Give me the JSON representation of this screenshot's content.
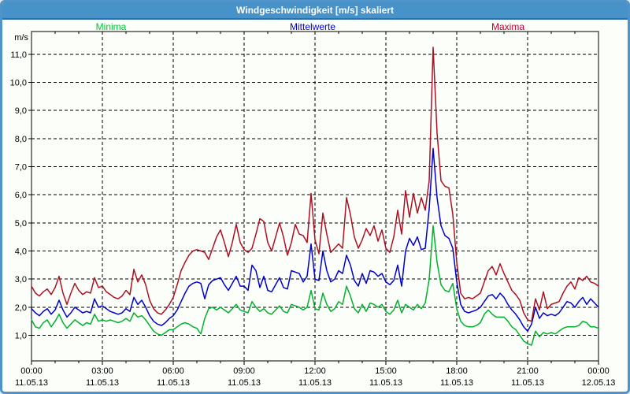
{
  "window": {
    "title": "Windgeschwindigkeit [m/s] skaliert"
  },
  "legend": {
    "items": [
      {
        "label": "Minima",
        "color": "#00c433"
      },
      {
        "label": "Mittelwerte",
        "color": "#0000cc"
      },
      {
        "label": "Maxima",
        "color": "#c3002f"
      }
    ]
  },
  "chart_data": {
    "type": "line",
    "title": "Windgeschwindigkeit [m/s] skaliert",
    "ylabel": "m/s",
    "xlabel": "",
    "grid": "dashed",
    "legend_position": "top",
    "sample_interval_minutes": 10,
    "x_range_hours": [
      0,
      24
    ],
    "ylim": [
      0.09,
      11.81
    ],
    "y_ticks": [
      {
        "value": 1,
        "label": "1,0"
      },
      {
        "value": 2,
        "label": "2,0"
      },
      {
        "value": 3,
        "label": "3,0"
      },
      {
        "value": 4,
        "label": "4,0"
      },
      {
        "value": 5,
        "label": "5,0"
      },
      {
        "value": 6,
        "label": "6,0"
      },
      {
        "value": 7,
        "label": "7,0"
      },
      {
        "value": 8,
        "label": "8,0"
      },
      {
        "value": 9,
        "label": "9,0"
      },
      {
        "value": 10,
        "label": "10,0"
      },
      {
        "value": 11,
        "label": "11,0"
      }
    ],
    "x_ticks": [
      {
        "hour": 0,
        "time": "00:00",
        "date": "11.05.13"
      },
      {
        "hour": 3,
        "time": "03:00",
        "date": "11.05.13"
      },
      {
        "hour": 6,
        "time": "06:00",
        "date": "11.05.13"
      },
      {
        "hour": 9,
        "time": "09:00",
        "date": "11.05.13"
      },
      {
        "hour": 12,
        "time": "12:00",
        "date": "11.05.13"
      },
      {
        "hour": 15,
        "time": "15:00",
        "date": "11.05.13"
      },
      {
        "hour": 18,
        "time": "18:00",
        "date": "11.05.13"
      },
      {
        "hour": 21,
        "time": "21:00",
        "date": "11.05.13"
      },
      {
        "hour": 24,
        "time": "00:00",
        "date": "12.05.13"
      }
    ],
    "series": [
      {
        "name": "Minima",
        "color": "#00b22c",
        "values": [
          1.55,
          1.3,
          1.25,
          1.45,
          1.55,
          1.3,
          1.5,
          1.75,
          1.45,
          1.25,
          1.4,
          1.55,
          1.45,
          1.35,
          1.45,
          1.4,
          1.75,
          1.5,
          1.55,
          1.5,
          1.55,
          1.5,
          1.45,
          1.5,
          1.6,
          1.5,
          1.8,
          1.65,
          1.7,
          1.55,
          1.35,
          1.15,
          1.05,
          1.0,
          1.1,
          1.2,
          1.2,
          1.3,
          1.4,
          1.45,
          1.4,
          1.3,
          1.25,
          1.05,
          1.6,
          1.95,
          2.0,
          1.9,
          2.0,
          1.9,
          1.8,
          1.95,
          2.1,
          1.9,
          1.85,
          1.8,
          2.2,
          2.0,
          1.85,
          1.95,
          1.8,
          1.75,
          1.9,
          2.05,
          1.85,
          1.8,
          2.1,
          2.05,
          2.0,
          1.9,
          2.0,
          2.6,
          1.95,
          1.9,
          2.5,
          2.1,
          1.85,
          1.95,
          2.2,
          2.1,
          2.75,
          2.4,
          1.95,
          1.8,
          2.1,
          1.85,
          2.15,
          2.1,
          2.0,
          2.1,
          1.85,
          1.75,
          1.9,
          2.25,
          1.8,
          2.1,
          2.0,
          1.9,
          2.1,
          1.95,
          2.15,
          3.0,
          4.9,
          3.6,
          2.8,
          2.6,
          2.55,
          2.85,
          1.95,
          1.5,
          1.35,
          1.3,
          1.3,
          1.35,
          1.45,
          1.75,
          1.9,
          1.75,
          1.65,
          1.65,
          1.65,
          1.5,
          1.3,
          1.2,
          1.0,
          0.8,
          0.7,
          0.65,
          1.15,
          0.95,
          1.1,
          1.05,
          1.1,
          1.05,
          1.15,
          1.25,
          1.3,
          1.3,
          1.3,
          1.35,
          1.5,
          1.45,
          1.3,
          1.3,
          1.25
        ]
      },
      {
        "name": "Mittelwerte",
        "color": "#0000cc",
        "values": [
          1.95,
          1.8,
          1.7,
          1.85,
          1.95,
          1.75,
          1.9,
          2.25,
          1.9,
          1.65,
          1.8,
          2.0,
          1.9,
          1.8,
          1.85,
          1.8,
          2.3,
          2.0,
          2.05,
          1.95,
          1.85,
          1.8,
          1.75,
          1.8,
          1.95,
          1.85,
          2.35,
          2.1,
          2.25,
          2.0,
          1.7,
          1.5,
          1.4,
          1.35,
          1.45,
          1.6,
          1.7,
          1.9,
          2.2,
          2.5,
          2.75,
          2.85,
          2.9,
          2.85,
          2.3,
          2.8,
          2.95,
          3.0,
          3.05,
          2.8,
          2.6,
          2.85,
          3.1,
          2.75,
          2.75,
          2.6,
          3.5,
          3.3,
          2.7,
          3.1,
          2.6,
          2.55,
          2.8,
          3.05,
          2.7,
          2.65,
          3.3,
          3.25,
          3.2,
          2.9,
          3.1,
          4.25,
          3.0,
          2.95,
          4.0,
          3.3,
          2.9,
          3.0,
          3.3,
          3.2,
          3.85,
          3.5,
          2.95,
          2.75,
          3.2,
          2.85,
          3.3,
          3.25,
          3.1,
          3.2,
          2.9,
          2.8,
          2.95,
          3.5,
          2.75,
          4.0,
          4.45,
          4.2,
          4.5,
          4.05,
          4.1,
          5.5,
          7.65,
          5.9,
          4.9,
          4.55,
          4.45,
          4.1,
          2.9,
          2.1,
          1.85,
          1.8,
          1.85,
          1.9,
          2.0,
          2.2,
          2.4,
          2.45,
          2.3,
          2.5,
          2.35,
          2.1,
          1.9,
          1.75,
          1.55,
          1.3,
          1.15,
          1.4,
          2.0,
          1.6,
          1.8,
          1.7,
          1.75,
          1.7,
          1.8,
          2.0,
          2.2,
          2.15,
          2.0,
          2.2,
          2.35,
          2.1,
          2.3,
          2.15,
          2.0
        ]
      },
      {
        "name": "Maxima",
        "color": "#ae1023",
        "values": [
          2.75,
          2.5,
          2.4,
          2.55,
          2.65,
          2.45,
          2.7,
          3.1,
          2.5,
          2.1,
          2.5,
          2.85,
          2.6,
          2.45,
          2.55,
          2.5,
          3.05,
          2.7,
          2.75,
          2.55,
          2.45,
          2.35,
          2.3,
          2.4,
          2.6,
          2.45,
          3.35,
          2.9,
          3.15,
          2.8,
          2.25,
          1.95,
          1.8,
          1.75,
          1.9,
          2.1,
          2.35,
          2.8,
          3.3,
          3.6,
          3.85,
          4.0,
          4.05,
          4.0,
          3.95,
          3.7,
          4.1,
          4.5,
          4.75,
          4.3,
          3.8,
          4.3,
          4.95,
          4.3,
          4.05,
          3.95,
          4.1,
          4.6,
          5.15,
          5.05,
          4.3,
          4.0,
          4.5,
          5.0,
          4.5,
          3.85,
          4.3,
          4.95,
          4.6,
          4.55,
          4.3,
          6.05,
          4.4,
          3.9,
          5.35,
          4.6,
          3.95,
          4.1,
          4.25,
          4.1,
          5.9,
          5.3,
          4.5,
          4.1,
          4.4,
          4.8,
          4.55,
          4.9,
          4.35,
          4.75,
          4.1,
          3.95,
          4.5,
          5.45,
          4.6,
          6.15,
          5.2,
          6.05,
          5.35,
          5.9,
          5.45,
          6.5,
          11.25,
          8.2,
          6.5,
          6.3,
          6.25,
          5.3,
          3.6,
          2.5,
          2.3,
          2.35,
          2.3,
          2.4,
          2.5,
          2.9,
          3.3,
          3.45,
          3.15,
          3.55,
          3.2,
          2.9,
          2.6,
          2.45,
          2.25,
          1.8,
          1.55,
          1.5,
          2.3,
          1.9,
          2.55,
          1.95,
          2.1,
          2.15,
          2.2,
          2.5,
          2.75,
          2.9,
          2.65,
          3.05,
          2.95,
          3.1,
          2.9,
          2.85,
          2.75
        ]
      }
    ]
  }
}
